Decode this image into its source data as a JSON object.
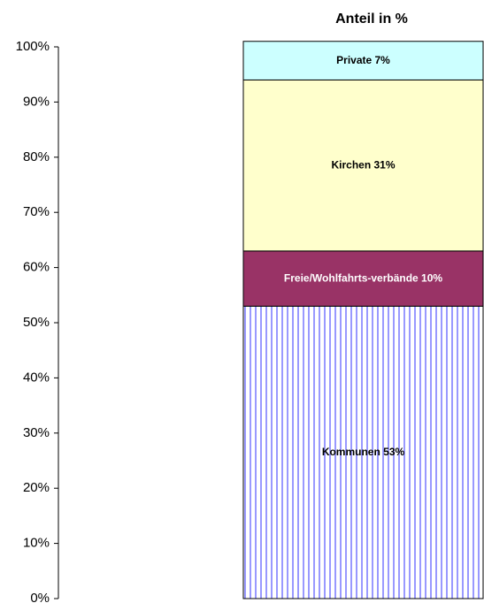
{
  "chart_data": {
    "type": "stacked_bar",
    "title": "Anteil in %",
    "categories": [
      null
    ],
    "series": [
      {
        "color": "#9999ff",
        "pattern": "vertical-stripes",
        "values": [
          53
        ],
        "value_labels": [
          "Kommunen 53%"
        ]
      },
      {
        "color": "#993366",
        "values": [
          10
        ],
        "value_labels": [
          "Freie/Wohlfahrts-verbände 10%"
        ]
      },
      {
        "color": "#ffffcc",
        "values": [
          31
        ],
        "value_labels": [
          "Kirchen 31%"
        ]
      },
      {
        "color": "#ccffff",
        "values": [
          7
        ],
        "value_labels": [
          "Private 7%"
        ]
      }
    ],
    "ylim": [
      0,
      100
    ],
    "yticks": [
      {
        "value": 0,
        "label": "0%"
      },
      {
        "value": 10,
        "label": "10%"
      },
      {
        "value": 20,
        "label": "20%"
      },
      {
        "value": 30,
        "label": "30%"
      },
      {
        "value": 40,
        "label": "40%"
      },
      {
        "value": 50,
        "label": "50%"
      },
      {
        "value": 60,
        "label": "60%"
      },
      {
        "value": 70,
        "label": "70%"
      },
      {
        "value": 80,
        "label": "80%"
      },
      {
        "value": 90,
        "label": "90%"
      },
      {
        "value": 100,
        "label": "100%"
      }
    ],
    "grid": false
  }
}
